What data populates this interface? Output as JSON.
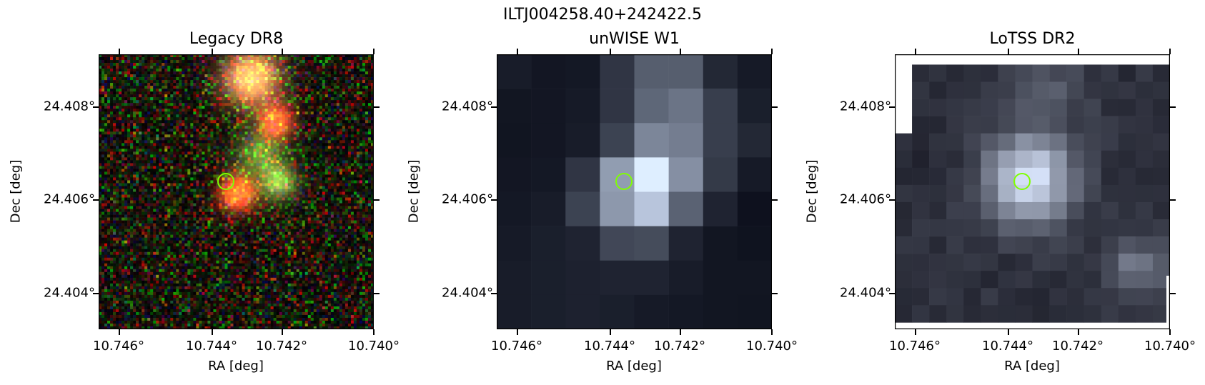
{
  "figure": {
    "suptitle": "ILTJ004258.40+242422.5",
    "marker_color": "#7fff00"
  },
  "panels": [
    {
      "title": "Legacy DR8",
      "xlabel": "RA [deg]",
      "ylabel": "Dec [deg]",
      "xticks": [
        "10.746°",
        "10.744°",
        "10.742°",
        "10.740°"
      ],
      "yticks": [
        "24.408°",
        "24.406°",
        "24.404°"
      ]
    },
    {
      "title": "unWISE W1",
      "xlabel": "RA [deg]",
      "ylabel": "Dec [deg]",
      "xticks": [
        "10.746°",
        "10.744°",
        "10.742°",
        "10.740°"
      ],
      "yticks": [
        "24.408°",
        "24.406°",
        "24.404°"
      ]
    },
    {
      "title": "LoTSS DR2",
      "xlabel": "RA [deg]",
      "ylabel": "Dec [deg]",
      "xticks": [
        "10.746°",
        "10.744°",
        "10.742°",
        "10.740°"
      ],
      "yticks": [
        "24.408°",
        "24.406°",
        "24.404°"
      ]
    }
  ]
}
